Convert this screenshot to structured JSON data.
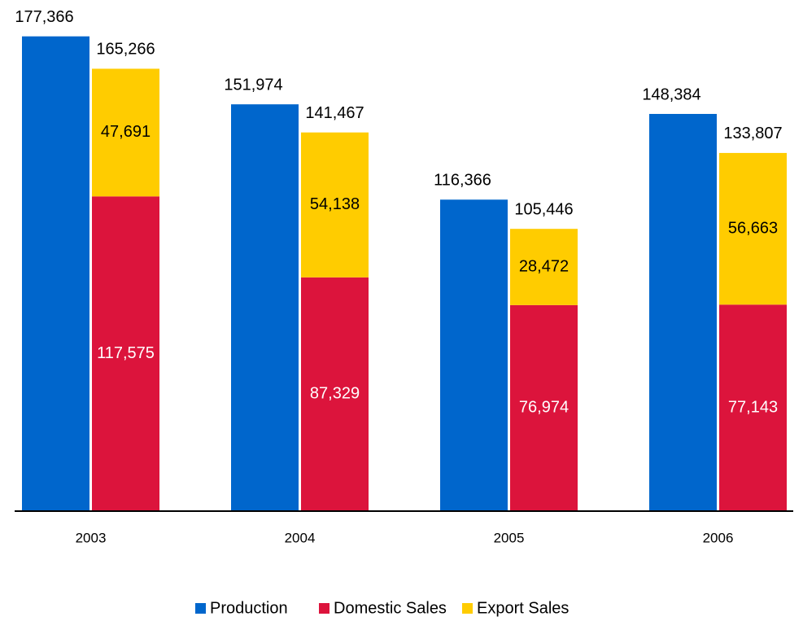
{
  "chart_data": {
    "type": "bar",
    "categories": [
      "2003",
      "2004",
      "2005",
      "2006"
    ],
    "ylim": [
      0,
      180000
    ],
    "series": [
      {
        "name": "Production",
        "color": "#0066cc",
        "label_color": "#000000",
        "values": [
          177366,
          151974,
          116366,
          148384
        ],
        "value_labels": [
          "177,366",
          "151,974",
          "116,366",
          "148,384"
        ]
      },
      {
        "name": "Domestic Sales",
        "color": "#dc143c",
        "label_color": "#ffffff",
        "stack": "sales",
        "values": [
          117575,
          87329,
          76974,
          77143
        ],
        "value_labels": [
          "117,575",
          "87,329",
          "76,974",
          "77,143"
        ]
      },
      {
        "name": "Export Sales",
        "color": "#ffcc00",
        "label_color": "#000000",
        "stack": "sales",
        "values": [
          47691,
          54138,
          28472,
          56663
        ],
        "value_labels": [
          "47,691",
          "54,138",
          "28,472",
          "56,663"
        ]
      }
    ],
    "stack_totals": {
      "values": [
        165266,
        141467,
        105446,
        133807
      ],
      "value_labels": [
        "165,266",
        "141,467",
        "105,446",
        "133,807"
      ]
    },
    "legend": "bottom"
  }
}
